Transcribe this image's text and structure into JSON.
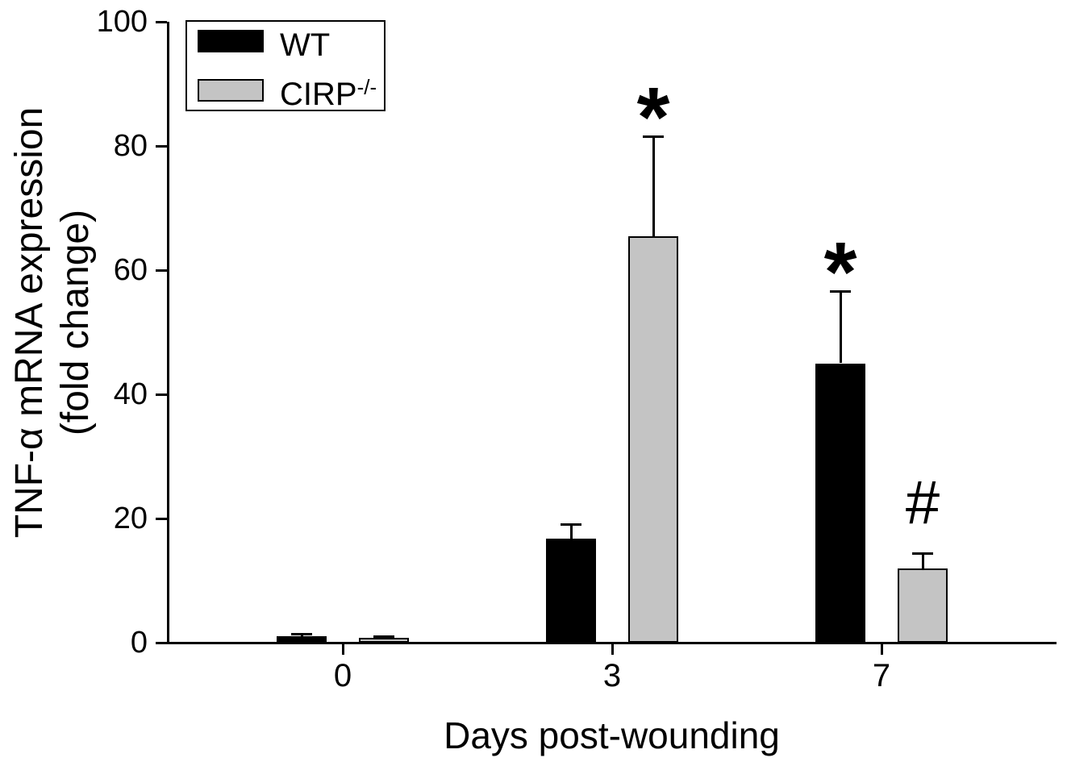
{
  "figure": {
    "background_color": "#ffffff",
    "text_color": "#000000"
  },
  "chart_data": {
    "type": "bar",
    "title": "",
    "xlabel": "Days post-wounding",
    "ylabel": "TNF-α mRNA expression (fold change)",
    "ylabel_line1": "TNF-α mRNA expression",
    "ylabel_line2": "(fold change)",
    "categories": [
      "0",
      "3",
      "7"
    ],
    "series": [
      {
        "name": "WT",
        "color": "#000000",
        "values": [
          1.0,
          16.7,
          45.0
        ],
        "errors": [
          0.3,
          2.3,
          11.5
        ]
      },
      {
        "name": "CIRP-/-",
        "color": "#c4c4c4",
        "values": [
          0.8,
          65.5,
          12.0
        ],
        "errors": [
          0.2,
          16.0,
          2.3
        ]
      }
    ],
    "ylim": [
      0,
      100
    ],
    "yticks": [
      "0",
      "20",
      "40",
      "60",
      "80",
      "100"
    ],
    "grid": false,
    "error_bars": "upper-only",
    "legend_position": "top-left",
    "annotations": [
      {
        "symbol": "*",
        "category_index": 1,
        "series_index": 1
      },
      {
        "symbol": "*",
        "category_index": 2,
        "series_index": 0
      },
      {
        "symbol": "#",
        "category_index": 2,
        "series_index": 1
      }
    ]
  },
  "legend": {
    "items": [
      {
        "label": "WT",
        "superscript": "",
        "swatch_color": "#000000"
      },
      {
        "label": "CIRP",
        "superscript": "-/-",
        "swatch_color": "#c4c4c4"
      }
    ]
  }
}
